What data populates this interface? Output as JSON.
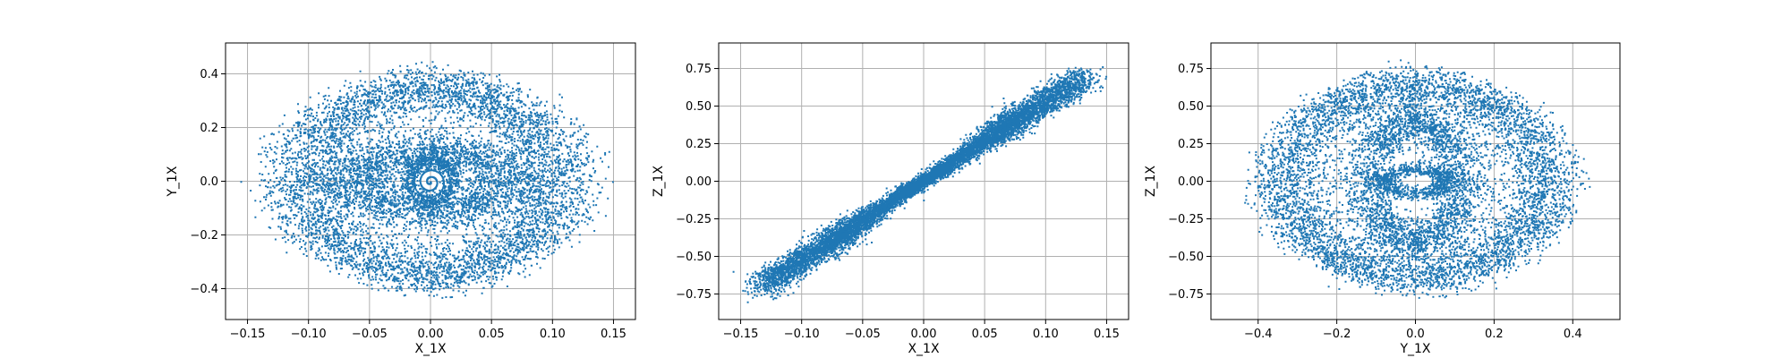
{
  "figure_title": "",
  "marker_color": "#1f77b4",
  "chart_data": [
    {
      "type": "scatter",
      "title": "",
      "xlabel": "X_1X",
      "ylabel": "Y_1X",
      "xlim": [
        -0.168,
        0.168
      ],
      "ylim": [
        -0.515,
        0.515
      ],
      "xticks": [
        -0.15,
        -0.1,
        -0.05,
        0.0,
        0.05,
        0.1,
        0.15
      ],
      "xtick_labels": [
        "−0.15",
        "−0.10",
        "−0.05",
        "0.00",
        "0.05",
        "0.10",
        "0.15"
      ],
      "yticks": [
        -0.4,
        -0.2,
        0.0,
        0.2,
        0.4
      ],
      "ytick_labels": [
        "−0.4",
        "−0.2",
        "0.0",
        "0.2",
        "0.4"
      ],
      "grid": true,
      "structures": [
        {
          "kind": "ring",
          "cx": 0.0,
          "cy": 0.0,
          "a": [
            0.15,
            0.06
          ],
          "b": [
            0.44,
            0.1
          ],
          "c": [
            0.0,
            0.0
          ],
          "points": 5500
        },
        {
          "kind": "ring",
          "cx": 0.0,
          "cy": 0.0,
          "a": [
            0.1,
            0.06
          ],
          "b": [
            0.2,
            0.12
          ],
          "c": [
            0.0,
            0.0
          ],
          "points": 2600
        },
        {
          "kind": "ring",
          "cx": 0.0,
          "cy": 0.0,
          "a": [
            0.026,
            0.01
          ],
          "b": [
            0.12,
            0.05
          ],
          "c": [
            0.0,
            0.0
          ],
          "points": 800
        },
        {
          "kind": "spiral",
          "cx": 0.0,
          "cy": 0.0,
          "a": 0.022,
          "b": 0.1,
          "turns": 4,
          "points": 220
        }
      ]
    },
    {
      "type": "scatter",
      "title": "",
      "xlabel": "X_1X",
      "ylabel": "Z_1X",
      "xlim": [
        -0.168,
        0.168
      ],
      "ylim": [
        -0.92,
        0.92
      ],
      "xticks": [
        -0.15,
        -0.1,
        -0.05,
        0.0,
        0.05,
        0.1,
        0.15
      ],
      "xtick_labels": [
        "−0.15",
        "−0.10",
        "−0.05",
        "0.00",
        "0.05",
        "0.10",
        "0.15"
      ],
      "yticks": [
        -0.75,
        -0.5,
        -0.25,
        0.0,
        0.25,
        0.5,
        0.75
      ],
      "ytick_labels": [
        "−0.75",
        "−0.50",
        "−0.25",
        "0.00",
        "0.25",
        "0.50",
        "0.75"
      ],
      "grid": true,
      "structures": [
        {
          "kind": "ring",
          "cx": 0.0,
          "cy": 0.0,
          "a": [
            0.15,
            0.03
          ],
          "b": [
            0.0,
            0.0
          ],
          "c": [
            0.78,
            0.14
          ],
          "points": 5500
        },
        {
          "kind": "ring",
          "cx": 0.0,
          "cy": 0.0,
          "a": [
            0.1,
            0.03
          ],
          "b": [
            0.0,
            0.0
          ],
          "c": [
            0.56,
            0.2
          ],
          "points": 2600
        },
        {
          "kind": "ring",
          "cx": 0.0,
          "cy": 0.0,
          "a": [
            0.026,
            0.01
          ],
          "b": [
            0.0,
            0.0
          ],
          "c": [
            0.12,
            0.05
          ],
          "points": 800
        }
      ]
    },
    {
      "type": "scatter",
      "title": "",
      "xlabel": "Y_1X",
      "ylabel": "Z_1X",
      "xlim": [
        -0.52,
        0.52
      ],
      "ylim": [
        -0.92,
        0.92
      ],
      "xticks": [
        -0.4,
        -0.2,
        0.0,
        0.2,
        0.4
      ],
      "xtick_labels": [
        "−0.4",
        "−0.2",
        "0.0",
        "0.2",
        "0.4"
      ],
      "yticks": [
        -0.75,
        -0.5,
        -0.25,
        0.0,
        0.25,
        0.5,
        0.75
      ],
      "ytick_labels": [
        "−0.75",
        "−0.50",
        "−0.25",
        "0.00",
        "0.25",
        "0.50",
        "0.75"
      ],
      "grid": true,
      "structures": [
        {
          "kind": "ring",
          "cx": 0.0,
          "cy": 0.0,
          "a": [
            0.0,
            0.0
          ],
          "b": [
            0.44,
            0.12
          ],
          "c": [
            0.78,
            0.14
          ],
          "points": 5500
        },
        {
          "kind": "ring",
          "cx": 0.0,
          "cy": 0.0,
          "a": [
            0.0,
            0.0
          ],
          "b": [
            0.2,
            0.12
          ],
          "c": [
            0.56,
            0.2
          ],
          "points": 2600
        },
        {
          "kind": "ring",
          "cx": 0.0,
          "cy": 0.0,
          "a": [
            0.0,
            0.0
          ],
          "b": [
            0.12,
            0.05
          ],
          "c": [
            0.12,
            0.05
          ],
          "points": 800
        }
      ]
    }
  ]
}
